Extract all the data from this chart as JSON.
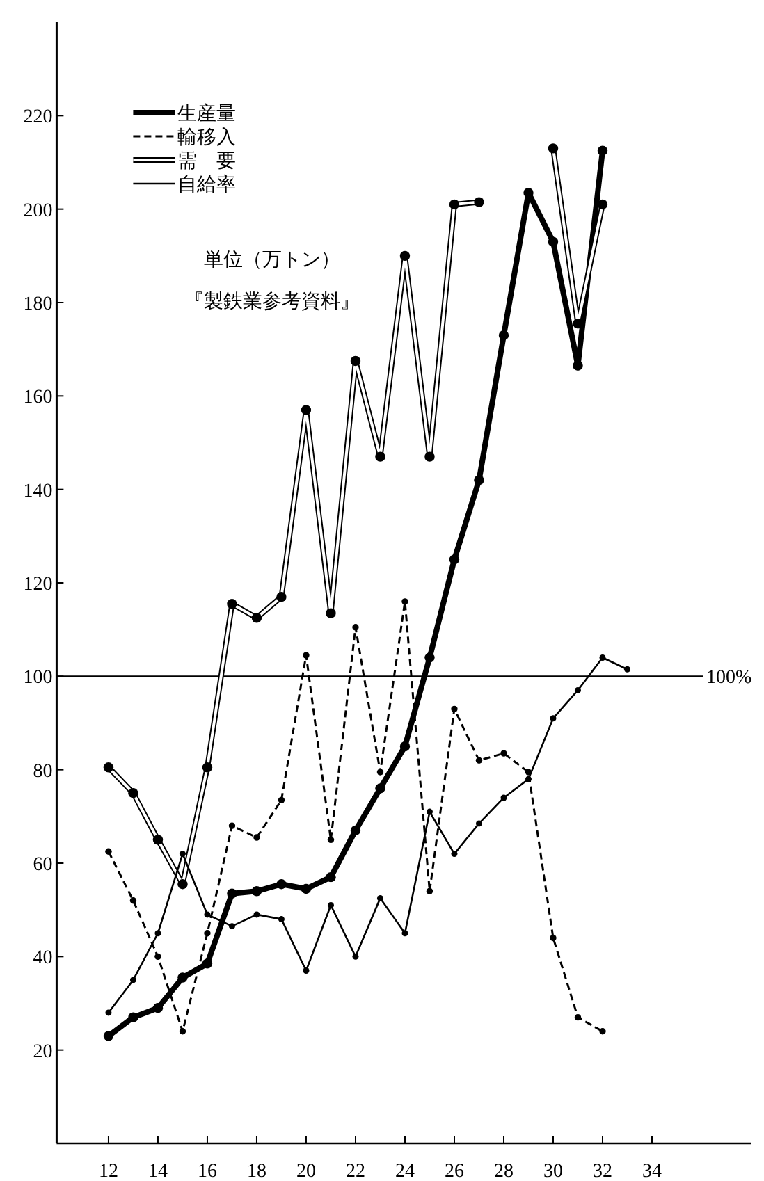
{
  "chart_data": {
    "type": "line",
    "x": [
      12,
      13,
      14,
      15,
      16,
      17,
      18,
      19,
      20,
      21,
      22,
      23,
      24,
      25,
      26,
      27,
      28,
      29,
      30,
      31,
      32
    ],
    "series": [
      {
        "name": "生産量",
        "color": "#000000",
        "line_style": "solid",
        "values": [
          23,
          27,
          29,
          35.5,
          38.5,
          53.5,
          54,
          55.5,
          54.5,
          57,
          67,
          76,
          85,
          104,
          125,
          142,
          173,
          203.5,
          193,
          166.5,
          212.5
        ]
      },
      {
        "name": "輸移入",
        "color": "#000000",
        "line_style": "dashed",
        "values": [
          62.5,
          52,
          40,
          24,
          45,
          68,
          65.5,
          73.5,
          104.5,
          65,
          110.5,
          79.5,
          116,
          54,
          93,
          82,
          83.5,
          79.5,
          44,
          27,
          24
        ]
      },
      {
        "name": "需　要",
        "color": "#000000",
        "line_style": "solid",
        "values": [
          80.5,
          75,
          65,
          55.5,
          80.5,
          115.5,
          112.5,
          117,
          157,
          113.5,
          167.5,
          147,
          190,
          147,
          201,
          201.5,
          null,
          null,
          213,
          175.5,
          201
        ]
      },
      {
        "name": "自給率",
        "color": "#000000",
        "line_style": "solid",
        "x": [
          12,
          13,
          14,
          15,
          16,
          17,
          18,
          19,
          20,
          21,
          22,
          23,
          24,
          25,
          26,
          27,
          28,
          29,
          30,
          31,
          32,
          33
        ],
        "values": [
          28,
          35,
          45,
          62,
          49,
          46.5,
          49,
          48,
          37,
          51,
          40,
          52.5,
          45,
          71,
          62,
          68.5,
          74,
          78,
          91,
          97,
          104,
          101.5
        ]
      }
    ],
    "xlim": [
      9.9,
      38
    ],
    "xticks": [
      12,
      14,
      16,
      18,
      20,
      22,
      24,
      26,
      28,
      30,
      32,
      34
    ],
    "ylim": [
      0,
      240
    ],
    "yticks": [
      20,
      40,
      60,
      80,
      100,
      120,
      140,
      160,
      180,
      200,
      220
    ],
    "ref_lines": [
      {
        "axis": "y",
        "value": 100,
        "label": "100%"
      }
    ],
    "annotations": [
      "単位（万トン）",
      "『製鉄業参考資料』"
    ],
    "legend": "top left",
    "marker": "circle",
    "grid": false
  }
}
